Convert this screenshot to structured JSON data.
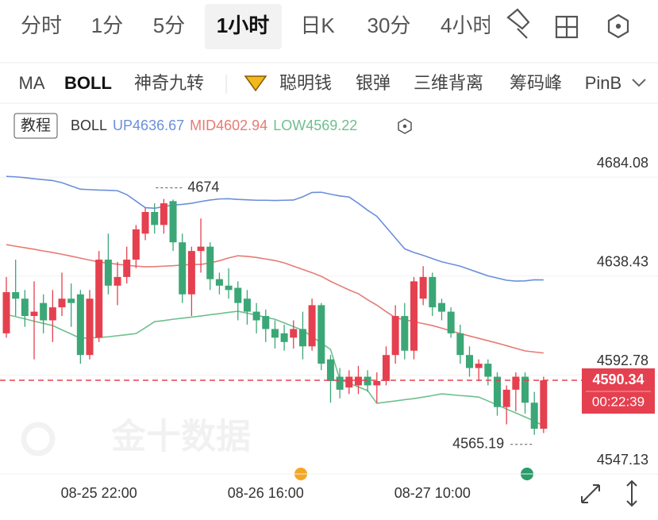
{
  "tabs": [
    "分时",
    "1分",
    "5分",
    "1小时",
    "日K",
    "30分",
    "4小时"
  ],
  "indicators": [
    "MA",
    "BOLL",
    "神奇九转",
    "聪明钱",
    "银弹",
    "三维背离",
    "筹码峰",
    "PinB"
  ],
  "chart_data": {
    "type": "candlestick",
    "tutorial": "教程",
    "indicator": "BOLL",
    "watermark": "金十数据",
    "countdown": "00:22:39",
    "categories": [
      null,
      null,
      null,
      null,
      null,
      null,
      null,
      null,
      null,
      null,
      "08-25 22:00",
      null,
      null,
      null,
      null,
      null,
      null,
      null,
      null,
      null,
      null,
      null,
      null,
      null,
      null,
      null,
      null,
      null,
      "08-26 16:00",
      null,
      null,
      null,
      null,
      null,
      null,
      null,
      null,
      null,
      null,
      null,
      null,
      null,
      null,
      null,
      null,
      null,
      "08-27 10:00",
      null,
      null,
      null,
      null,
      null,
      null,
      null,
      null,
      null,
      null,
      null,
      null
    ],
    "open": [
      4612,
      4631,
      4628,
      4620,
      4626,
      4618,
      4624,
      4628,
      4630,
      4602,
      4610,
      4646,
      4634,
      4638,
      4646,
      4658,
      4668,
      4662,
      4673,
      4654,
      4630,
      4650,
      4652,
      4637,
      4634,
      4633,
      4628,
      4622,
      4620,
      4614,
      4612,
      4610,
      4614,
      4606,
      4625,
      4600,
      4592,
      4587,
      4588,
      4592,
      4588,
      4590,
      4602,
      4620,
      4604,
      4628,
      4638,
      4626,
      4622,
      4612,
      4602,
      4596,
      4598,
      4592,
      4578,
      4586,
      4592,
      4580,
      4568
    ],
    "high": [
      4638,
      4646,
      4632,
      4636,
      4630,
      4632,
      4640,
      4635,
      4632,
      4632,
      4650,
      4658,
      4645,
      4652,
      4662,
      4670,
      4672,
      4674,
      4673.74,
      4658,
      4652,
      4665,
      4654,
      4640,
      4642,
      4636,
      4632,
      4626,
      4623,
      4618,
      4616,
      4618,
      4622,
      4628,
      4626,
      4602,
      4596,
      4595,
      4597,
      4595,
      4594,
      4606,
      4625,
      4626,
      4638,
      4643,
      4640,
      4628,
      4624,
      4616,
      4606,
      4600,
      4600,
      4594,
      4588,
      4594,
      4594,
      4585,
      4592
    ],
    "low": [
      4610,
      4620,
      4615,
      4600,
      4612,
      4608,
      4620,
      4615,
      4598,
      4600,
      4608,
      4630,
      4625,
      4635,
      4642,
      4655,
      4658,
      4658,
      4650,
      4626,
      4620,
      4640,
      4632,
      4630,
      4628,
      4618,
      4616,
      4612,
      4608,
      4605,
      4604,
      4605,
      4600,
      4604,
      4595,
      4580,
      4582,
      4584,
      4584,
      4585,
      4580,
      4588,
      4598,
      4600,
      4600,
      4625,
      4620,
      4618,
      4610,
      4598,
      4592,
      4590,
      4588,
      4574,
      4570,
      4576,
      4575,
      4565.19,
      4566
    ],
    "close": [
      4631,
      4628,
      4620,
      4622,
      4618,
      4624,
      4628,
      4626,
      4602,
      4628,
      4646,
      4634,
      4638,
      4646,
      4660,
      4668,
      4662,
      4672,
      4654,
      4630,
      4650,
      4652,
      4637,
      4634,
      4632,
      4626,
      4622,
      4618,
      4614,
      4610,
      4608,
      4614,
      4606,
      4625,
      4598,
      4590,
      4586,
      4592,
      4592,
      4588,
      4590,
      4602,
      4620,
      4604,
      4636,
      4638,
      4624,
      4622,
      4612,
      4602,
      4596,
      4598,
      4592,
      4578,
      4586,
      4592,
      4580,
      4568,
      4590.34
    ],
    "up_color": "#e5404f",
    "down_color": "#3ba776",
    "price_line_color": "#e5404f",
    "series": [
      {
        "name": "UP",
        "color": "#6b8fdb",
        "values": [
          4684.4,
          4684.2,
          4683.8,
          4683.3,
          4682.9,
          4682.5,
          4681.5,
          4680,
          4678.5,
          4678.3,
          4678.1,
          4678,
          4677.8,
          4676,
          4673,
          4670,
          4669.7,
          4670.5,
          4671.2,
          4671.5,
          4672,
          4672.8,
          4673.5,
          4674,
          4674.1,
          4673.8,
          4673.6,
          4673.4,
          4673.4,
          4673.3,
          4673.4,
          4673.5,
          4675,
          4677,
          4677.1,
          4676.2,
          4675.4,
          4674.9,
          4672,
          4668.8,
          4666,
          4661,
          4656,
          4651,
          4649.3,
          4648,
          4646.5,
          4645,
          4644,
          4643,
          4641.5,
          4640,
          4638.5,
          4637.5,
          4636.5,
          4636.1,
          4636.2,
          4636.7,
          4636.67
        ]
      },
      {
        "name": "MID",
        "color": "#e77b75",
        "values": [
          4652.9,
          4652.2,
          4651.5,
          4650.8,
          4650,
          4649.3,
          4648.5,
          4647.6,
          4646.7,
          4645.8,
          4644.9,
          4644.4,
          4643.9,
          4643.4,
          4643,
          4642.7,
          4642.8,
          4643,
          4643.2,
          4643.5,
          4643.8,
          4643.8,
          4644.5,
          4645.5,
          4646.8,
          4647.8,
          4647.5,
          4647,
          4646.3,
          4645.6,
          4644.5,
          4643,
          4641.5,
          4640,
          4638.3,
          4636,
          4634,
          4632,
          4630.3,
          4627.5,
          4625,
          4622,
          4619.2,
          4618.3,
          4617.4,
          4616.5,
          4615.6,
          4614.4,
          4613.1,
          4611.9,
          4610.8,
          4609.7,
          4608.6,
          4607.5,
          4606.3,
          4605.1,
          4603.9,
          4603.4,
          4602.94
        ]
      },
      {
        "name": "LOW",
        "color": "#6fbf8e",
        "values": [
          4620.7,
          4619.7,
          4618.7,
          4617.6,
          4616.6,
          4615.6,
          4613.6,
          4611.7,
          4609.7,
          4609.9,
          4610.1,
          4610.4,
          4610.9,
          4611.4,
          4611.9,
          4614.6,
          4617.4,
          4617.9,
          4618.5,
          4619,
          4619.5,
          4620,
          4620.6,
          4621.1,
          4621.7,
          4622.2,
          4621.3,
          4620.4,
          4619.4,
          4618.5,
          4616.8,
          4615.1,
          4613.4,
          4610.5,
          4607.5,
          4604.6,
          4590.7,
          4589,
          4587.3,
          4585.6,
          4579.7,
          4580.3,
          4580.8,
          4581.4,
          4581.9,
          4582.6,
          4583.3,
          4584.1,
          4583.7,
          4583.3,
          4583,
          4582.6,
          4580.8,
          4579,
          4577.1,
          4575.3,
          4573.4,
          4571.6,
          4569.22
        ]
      }
    ],
    "ylim": [
      4547.13,
      4696.2
    ],
    "yticks": [
      4547.13,
      4592.78,
      4638.43,
      4684.08
    ],
    "grid": true
  }
}
